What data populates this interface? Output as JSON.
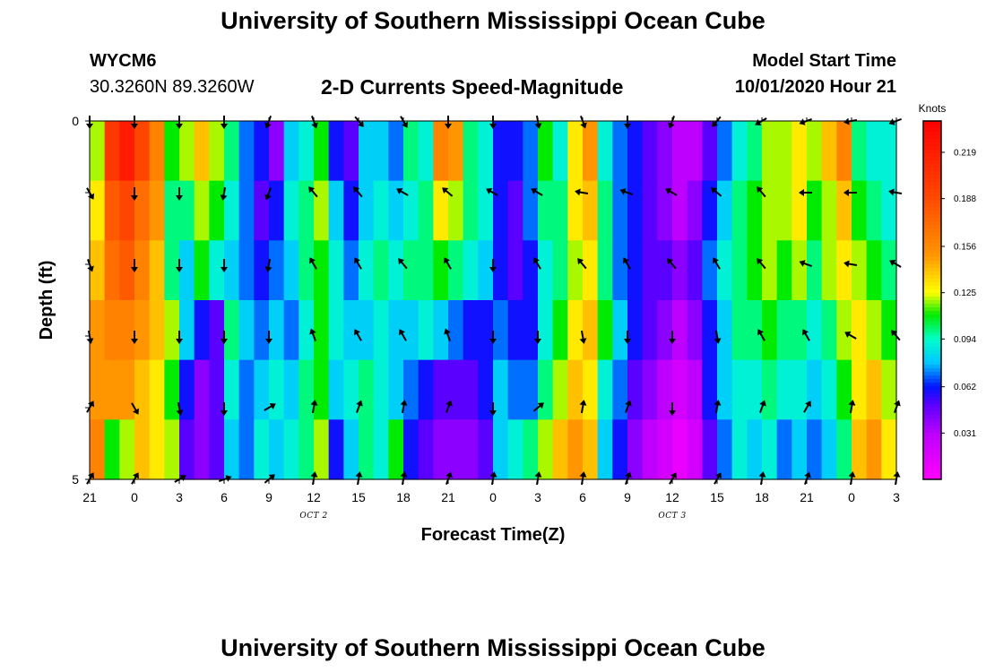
{
  "header": {
    "title_top": "University of Southern Mississippi Ocean Cube",
    "title_bottom": "University of Southern Mississippi Ocean Cube",
    "station_id": "WYCM6",
    "station_coords": "30.3260N 89.3260W",
    "model_start_label": "Model Start Time",
    "model_start_value": "10/01/2020 Hour 21"
  },
  "chart_data": {
    "type": "heatmap",
    "title": "2-D Currents Speed-Magnitude",
    "xlabel": "Forecast Time(Z)",
    "ylabel": "Depth (ft)",
    "x_ticks": [
      "21",
      "0",
      "3",
      "6",
      "9",
      "12",
      "15",
      "18",
      "21",
      "0",
      "3",
      "6",
      "9",
      "12",
      "15",
      "18",
      "21",
      "0",
      "3"
    ],
    "x_annotations": [
      {
        "label": "OCT 2",
        "tick_index": 5
      },
      {
        "label": "OCT 3",
        "tick_index": 13
      }
    ],
    "y_tick_labels": [
      {
        "depth": 0,
        "label": "0"
      },
      {
        "depth": 1,
        "label": ""
      },
      {
        "depth": 2,
        "label": ""
      },
      {
        "depth": 3,
        "label": ""
      },
      {
        "depth": 4,
        "label": ""
      },
      {
        "depth": 5,
        "label": "5"
      }
    ],
    "ylim": [
      0,
      5
    ],
    "colorbar": {
      "unit": "Knots",
      "min": 0.0,
      "max": 0.24,
      "ticks": [
        "0.219",
        "0.188",
        "0.156",
        "0.125",
        "0.094",
        "0.062",
        "0.031"
      ],
      "tick_values": [
        0.219,
        0.188,
        0.156,
        0.125,
        0.094,
        0.062,
        0.031
      ]
    },
    "hours_per_col": 1,
    "total_hours": 54,
    "depth_layers": [
      0,
      1,
      2,
      3,
      4,
      5
    ],
    "speed_profiles": [
      [
        0.12,
        0.2,
        0.22,
        0.19,
        0.16,
        0.11,
        0.12,
        0.14,
        0.12,
        0.1,
        0.07,
        0.06,
        0.04,
        0.08,
        0.09,
        0.11,
        0.06,
        0.05,
        0.08,
        0.08,
        0.07,
        0.1,
        0.09,
        0.16,
        0.15,
        0.1,
        0.09,
        0.06,
        0.06,
        0.07,
        0.11,
        0.09,
        0.13,
        0.15,
        0.09,
        0.07,
        0.06,
        0.05,
        0.04,
        0.03,
        0.03,
        0.05,
        0.07,
        0.09,
        0.1,
        0.12,
        0.12,
        0.13,
        0.12,
        0.14,
        0.16,
        0.1,
        0.09,
        0.09
      ],
      [
        0.13,
        0.18,
        0.19,
        0.17,
        0.15,
        0.1,
        0.1,
        0.12,
        0.11,
        0.09,
        0.07,
        0.05,
        0.06,
        0.09,
        0.1,
        0.12,
        0.08,
        0.06,
        0.08,
        0.09,
        0.08,
        0.09,
        0.1,
        0.13,
        0.12,
        0.1,
        0.09,
        0.06,
        0.05,
        0.07,
        0.1,
        0.1,
        0.13,
        0.14,
        0.1,
        0.07,
        0.06,
        0.05,
        0.04,
        0.03,
        0.04,
        0.06,
        0.08,
        0.1,
        0.11,
        0.12,
        0.12,
        0.13,
        0.11,
        0.12,
        0.14,
        0.11,
        0.1,
        0.09
      ],
      [
        0.14,
        0.17,
        0.18,
        0.16,
        0.14,
        0.1,
        0.08,
        0.11,
        0.09,
        0.08,
        0.07,
        0.06,
        0.07,
        0.08,
        0.1,
        0.11,
        0.09,
        0.07,
        0.09,
        0.1,
        0.09,
        0.1,
        0.1,
        0.11,
        0.1,
        0.09,
        0.08,
        0.06,
        0.05,
        0.06,
        0.09,
        0.1,
        0.12,
        0.13,
        0.1,
        0.07,
        0.06,
        0.05,
        0.05,
        0.04,
        0.05,
        0.07,
        0.09,
        0.1,
        0.11,
        0.12,
        0.11,
        0.12,
        0.1,
        0.12,
        0.13,
        0.12,
        0.11,
        0.1
      ],
      [
        0.15,
        0.16,
        0.16,
        0.15,
        0.14,
        0.12,
        0.08,
        0.06,
        0.05,
        0.1,
        0.08,
        0.07,
        0.08,
        0.07,
        0.09,
        0.11,
        0.09,
        0.08,
        0.08,
        0.09,
        0.08,
        0.08,
        0.09,
        0.08,
        0.07,
        0.06,
        0.06,
        0.07,
        0.06,
        0.06,
        0.09,
        0.11,
        0.13,
        0.14,
        0.11,
        0.08,
        0.06,
        0.05,
        0.04,
        0.03,
        0.04,
        0.06,
        0.08,
        0.1,
        0.1,
        0.11,
        0.1,
        0.1,
        0.09,
        0.1,
        0.12,
        0.13,
        0.12,
        0.11
      ],
      [
        0.15,
        0.15,
        0.15,
        0.14,
        0.13,
        0.11,
        0.06,
        0.04,
        0.05,
        0.09,
        0.07,
        0.08,
        0.09,
        0.08,
        0.1,
        0.11,
        0.08,
        0.09,
        0.1,
        0.09,
        0.08,
        0.07,
        0.06,
        0.05,
        0.05,
        0.05,
        0.06,
        0.08,
        0.07,
        0.07,
        0.1,
        0.12,
        0.14,
        0.13,
        0.09,
        0.07,
        0.05,
        0.04,
        0.03,
        0.02,
        0.03,
        0.06,
        0.08,
        0.09,
        0.09,
        0.1,
        0.09,
        0.09,
        0.08,
        0.09,
        0.11,
        0.13,
        0.14,
        0.12
      ],
      [
        0.16,
        0.11,
        0.12,
        0.14,
        0.13,
        0.12,
        0.05,
        0.04,
        0.05,
        0.08,
        0.07,
        0.09,
        0.08,
        0.09,
        0.1,
        0.12,
        0.06,
        0.08,
        0.1,
        0.09,
        0.11,
        0.06,
        0.05,
        0.04,
        0.04,
        0.04,
        0.05,
        0.08,
        0.09,
        0.1,
        0.12,
        0.14,
        0.15,
        0.14,
        0.08,
        0.06,
        0.04,
        0.03,
        0.02,
        0.01,
        0.02,
        0.05,
        0.07,
        0.09,
        0.08,
        0.09,
        0.07,
        0.08,
        0.07,
        0.08,
        0.1,
        0.14,
        0.15,
        0.13
      ]
    ],
    "vectors": {
      "comment": "Direction in degrees (0 = pointing up / north, clockwise). One arrow every 3 hours starting at x tick index 0, per depth layer 0..5.",
      "directions": [
        [
          180,
          180,
          180,
          180,
          200,
          160,
          140,
          150,
          180,
          180,
          170,
          160,
          180,
          200,
          220,
          240,
          250,
          260,
          250
        ],
        [
          150,
          180,
          180,
          190,
          200,
          320,
          320,
          300,
          310,
          300,
          300,
          280,
          290,
          300,
          310,
          320,
          270,
          270,
          280
        ],
        [
          160,
          180,
          180,
          180,
          190,
          330,
          330,
          320,
          330,
          180,
          330,
          320,
          330,
          320,
          330,
          320,
          290,
          280,
          300
        ],
        [
          170,
          180,
          180,
          180,
          180,
          340,
          330,
          330,
          340,
          180,
          180,
          170,
          180,
          180,
          170,
          330,
          330,
          300,
          320
        ],
        [
          30,
          150,
          170,
          180,
          60,
          10,
          20,
          10,
          20,
          180,
          50,
          10,
          20,
          180,
          10,
          20,
          30,
          10,
          20
        ],
        [
          30,
          30,
          60,
          70,
          50,
          10,
          10,
          10,
          20,
          10,
          10,
          10,
          20,
          30,
          30,
          10,
          20,
          10,
          10
        ]
      ]
    }
  }
}
